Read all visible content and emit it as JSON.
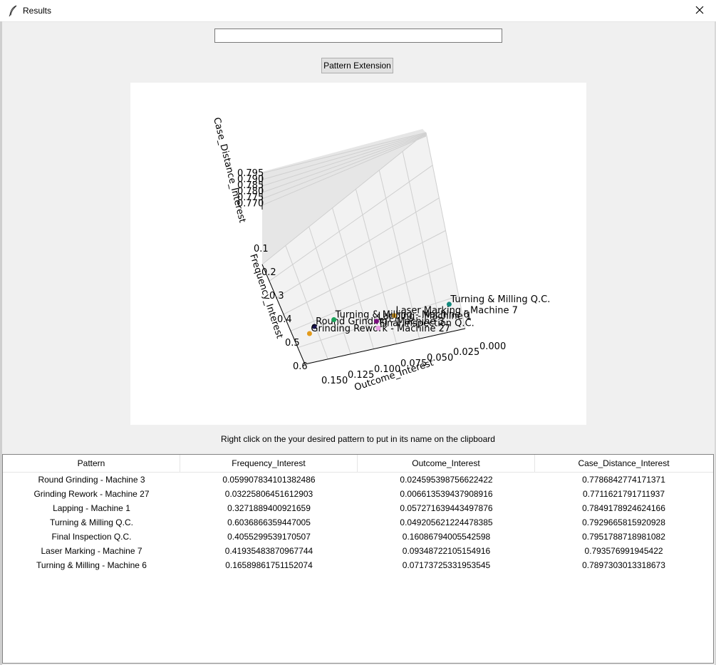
{
  "window": {
    "title": "Results",
    "app_icon": "feather-icon",
    "close_icon": "close-icon"
  },
  "search": {
    "value": "",
    "placeholder": ""
  },
  "toolbar": {
    "pattern_extension_label": "Pattern Extension"
  },
  "chart_data": {
    "type": "scatter",
    "projection": "3d",
    "title": "",
    "xlabel": "Outcome_Interest",
    "ylabel": "Frequency_Interest",
    "zlabel": "Case_Distance_Interest",
    "x_ticks": [
      "0.150",
      "0.125",
      "0.100",
      "0.075",
      "0.050",
      "0.025",
      "0.000"
    ],
    "y_ticks": [
      "0.1",
      "0.2",
      "0.3",
      "0.4",
      "0.5",
      "0.6"
    ],
    "z_ticks": [
      "0.795",
      "0.790",
      "0.785",
      "0.780",
      "0.775",
      "0.770"
    ],
    "grid": true,
    "points": [
      {
        "label": "Round Grinding - Machine 3",
        "frequency": 0.0599,
        "outcome": 0.0246,
        "case_distance": 0.7787,
        "color": "#1a1452"
      },
      {
        "label": "Grinding Rework - Machine 27",
        "frequency": 0.0323,
        "outcome": 0.0066,
        "case_distance": 0.7712,
        "color": "#e39b1b"
      },
      {
        "label": "Lapping - Machine 1",
        "frequency": 0.3272,
        "outcome": 0.0573,
        "case_distance": 0.7849,
        "color": "#7a0e7e"
      },
      {
        "label": "Turning & Milling Q.C.",
        "frequency": 0.6037,
        "outcome": 0.0492,
        "case_distance": 0.793,
        "color": "#138a7e"
      },
      {
        "label": "Final Inspection Q.C.",
        "frequency": 0.4055,
        "outcome": 0.1609,
        "case_distance": 0.7952,
        "color": "#e79ee3"
      },
      {
        "label": "Laser Marking - Machine 7",
        "frequency": 0.4194,
        "outcome": 0.0935,
        "case_distance": 0.7936,
        "color": "#d19a2a"
      },
      {
        "label": "Turning & Milling - Machine 6",
        "frequency": 0.1659,
        "outcome": 0.0717,
        "case_distance": 0.7897,
        "color": "#1aa35a"
      }
    ]
  },
  "hint": "Right click on the your desired pattern to put in its name on the clipboard",
  "table": {
    "columns": [
      "Pattern",
      "Frequency_Interest",
      "Outcome_Interest",
      "Case_Distance_Interest"
    ],
    "rows": [
      [
        "Round Grinding - Machine 3",
        "0.059907834101382486",
        "0.024595398756622422",
        "0.7786842774171371"
      ],
      [
        "Grinding Rework - Machine 27",
        "0.03225806451612903",
        "0.006613539437908916",
        "0.7711621791711937"
      ],
      [
        "Lapping - Machine 1",
        "0.3271889400921659",
        "0.057271639443497876",
        "0.7849178924624166"
      ],
      [
        "Turning & Milling Q.C.",
        "0.6036866359447005",
        "0.04920562122447838​5",
        "0.7929665815920928"
      ],
      [
        "Final Inspection Q.C.",
        "0.4055299539170507",
        "0.16086794005542598",
        "0.7951788718981082"
      ],
      [
        "Laser Marking - Machine 7",
        "0.41935483870967744",
        "0.09348722105154916",
        "0.793576991945422"
      ],
      [
        "Turning & Milling - Machine 6",
        "0.16589861751152074",
        "0.07173725331953545",
        "0.7897303013318673"
      ]
    ]
  }
}
